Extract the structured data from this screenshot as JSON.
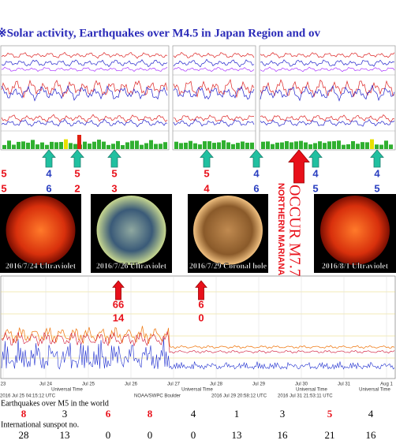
{
  "title": "※Solar activity, Earthquakes over M4.5 in Japan Region and ov",
  "markers": [
    {
      "top": 5,
      "bottom": 5,
      "color": "#e8101a"
    },
    {
      "top": 4,
      "bottom": 6,
      "color": "#2a3fc0"
    },
    {
      "top": 5,
      "bottom": 2,
      "color": "#e8101a"
    },
    {
      "top": 5,
      "bottom": 3,
      "color": "#e8101a"
    },
    {
      "top": 5,
      "bottom": 4,
      "color": "#e8101a"
    },
    {
      "top": 4,
      "bottom": 6,
      "color": "#2a3fc0"
    },
    {
      "top": 4,
      "bottom": 5,
      "color": "#2a3fc0"
    },
    {
      "top": 4,
      "bottom": 5,
      "color": "#2a3fc0"
    }
  ],
  "big_event": {
    "text": "OCCUR M7.7",
    "place": "NORTHERN MARIANA (ISLANDS)"
  },
  "images": [
    {
      "caption": "2016/7/24 Ultraviolet"
    },
    {
      "caption": "2016/7/26 Ultraviolet"
    },
    {
      "caption": "2016/7/29 Coronal hole"
    },
    {
      "caption": "2016/8/1 Ultraviolet"
    }
  ],
  "lower_markers": [
    {
      "top": 66,
      "bottom": 14
    },
    {
      "top": 6,
      "bottom": 0
    }
  ],
  "xray_axis": [
    "23",
    "Jul 24",
    "Jul 25",
    "Jul 26",
    "Jul 27",
    "Jul 28",
    "Jul 29",
    "Jul 30",
    "Jul 31",
    "Aug 1"
  ],
  "axis_title": "Universal Time",
  "stamps": [
    "2016 Jul 25 04:15:12 UTC",
    "NOAA/SWPC Boulder",
    "2016 Jul 29 20:58:12 UTC",
    "2016 Jul 31 21:53:11 UTC"
  ],
  "earthquakes": {
    "label": "Earthquakes over M5 in the world",
    "values": [
      8,
      3,
      6,
      8,
      4,
      1,
      3,
      5,
      4
    ],
    "colors": [
      "#e8101a",
      "#000000",
      "#e8101a",
      "#e8101a",
      "#000000",
      "#000000",
      "#000000",
      "#e8101a",
      "#000000"
    ]
  },
  "sunspots": {
    "label": "International sunspot no.",
    "values": [
      28,
      13,
      0,
      0,
      0,
      13,
      16,
      21,
      16
    ]
  }
}
